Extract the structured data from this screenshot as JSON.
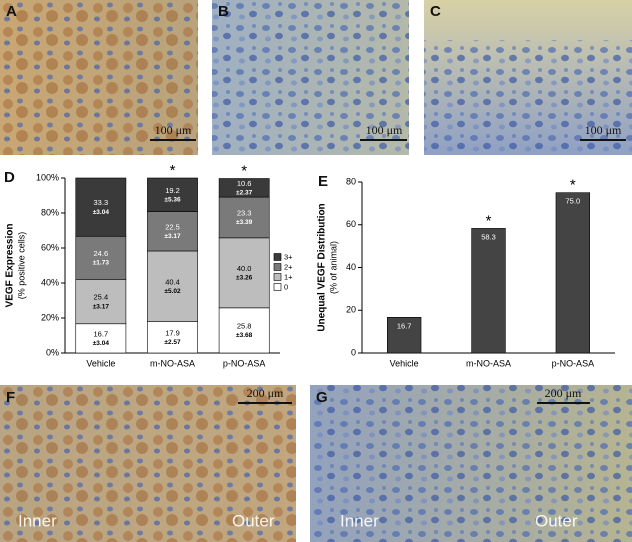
{
  "images": [
    {
      "label": "A",
      "scale_bar": "100 μm"
    },
    {
      "label": "B",
      "scale_bar": "100 μm"
    },
    {
      "label": "C",
      "scale_bar": "100 μm"
    },
    {
      "label": "F",
      "scale_bar": "200 μm",
      "regions": [
        "Inner",
        "Outer"
      ]
    },
    {
      "label": "G",
      "scale_bar": "200 μm",
      "regions": [
        "Inner",
        "Outer"
      ]
    }
  ],
  "chart_data": [
    {
      "type": "stacked_bar",
      "panel_label": "D",
      "ylabel": "VEGF Expression",
      "ylabel_sub": "(% positive cells)",
      "categories": [
        "Vehicle",
        "m-NO-ASA",
        "p-NO-ASA"
      ],
      "series": [
        {
          "name": "0",
          "color": "#ffffff",
          "values": [
            16.7,
            17.9,
            25.8
          ],
          "error_labels": [
            "±3.04",
            "±2.57",
            "±3.68"
          ]
        },
        {
          "name": "1+",
          "color": "#bdbdbd",
          "values": [
            25.4,
            40.4,
            40.0
          ],
          "value_labels": [
            "25.4",
            "40.4",
            "40.0"
          ],
          "error_labels": [
            "±3.17",
            "±5.02",
            "±3.26"
          ]
        },
        {
          "name": "2+",
          "color": "#7a7a7a",
          "values": [
            24.6,
            22.5,
            23.3
          ],
          "error_labels": [
            "±1.73",
            "±3.17",
            "±3.39"
          ]
        },
        {
          "name": "3+",
          "color": "#3a3a3a",
          "values": [
            33.3,
            19.2,
            10.6
          ],
          "error_labels": [
            "±3.04",
            "±5.36",
            "±2.37"
          ]
        }
      ],
      "significance": [
        null,
        "*",
        "*"
      ],
      "ylim": [
        0,
        100
      ],
      "yticks": [
        {
          "value": 0,
          "label": "0%"
        },
        {
          "value": 20,
          "label": "20%"
        },
        {
          "value": 40,
          "label": "40%"
        },
        {
          "value": 60,
          "label": "60%"
        },
        {
          "value": 80,
          "label": "80%"
        },
        {
          "value": 100,
          "label": "100%"
        }
      ],
      "legend": "right",
      "grid": false
    },
    {
      "type": "bar",
      "panel_label": "E",
      "ylabel": "Unequal VEGF Distribution",
      "ylabel_sub": "(% of animal)",
      "categories": [
        "Vehicle",
        "m-NO-ASA",
        "p-NO-ASA"
      ],
      "values": [
        16.7,
        58.3,
        75.0
      ],
      "value_labels": [
        "16.7",
        "58.3",
        "75.0"
      ],
      "color": "#444444",
      "significance": [
        null,
        "*",
        "*"
      ],
      "ylim": [
        0,
        80
      ],
      "yticks": [
        0,
        20,
        40,
        60,
        80
      ],
      "grid": false
    }
  ]
}
